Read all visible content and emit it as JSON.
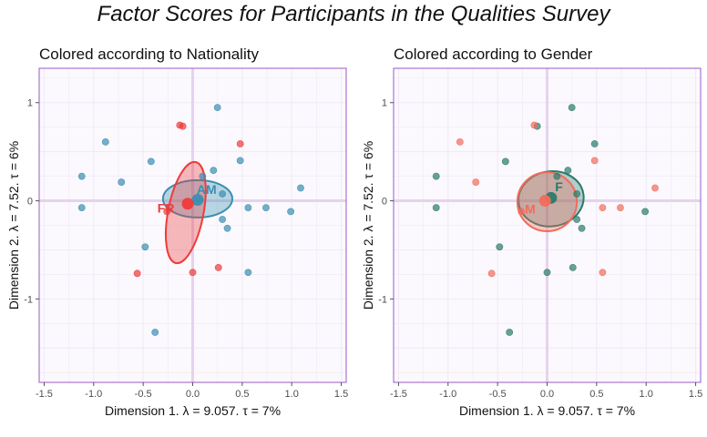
{
  "title": "Factor Scores for Participants in the Qualities Survey",
  "chart_data": [
    {
      "type": "scatter",
      "title": "Colored according to Nationality",
      "xlabel": "Dimension 1.   λ = 9.057.  τ = 7%",
      "ylabel": "Dimension 2.   λ = 7.52.  τ = 6%",
      "xlim": [
        -1.55,
        1.55
      ],
      "ylim": [
        -1.85,
        1.35
      ],
      "xticks": [
        -1.5,
        -1,
        -0.5,
        0,
        0.5,
        1,
        1.5
      ],
      "xtick_labels": [
        "-1.5",
        "-1.0",
        "-0.5",
        "0.0",
        "0.5",
        "1.0",
        "1.5"
      ],
      "yticks": [
        1,
        0,
        -1
      ],
      "ytick_labels": [
        "1",
        "0",
        "-1"
      ],
      "series": [
        {
          "name": "AM",
          "color": "#3a8fb0",
          "points": [
            [
              0.25,
              0.95
            ],
            [
              -0.88,
              0.6
            ],
            [
              -1.12,
              0.25
            ],
            [
              -0.72,
              0.19
            ],
            [
              -1.12,
              -0.07
            ],
            [
              -0.42,
              0.4
            ],
            [
              0.21,
              0.31
            ],
            [
              0.1,
              0.25
            ],
            [
              0.48,
              0.41
            ],
            [
              0.3,
              0.07
            ],
            [
              0.3,
              -0.19
            ],
            [
              0.56,
              -0.07
            ],
            [
              0.74,
              -0.07
            ],
            [
              0.99,
              -0.11
            ],
            [
              1.09,
              0.13
            ],
            [
              0.35,
              -0.28
            ],
            [
              -0.48,
              -0.47
            ],
            [
              0.56,
              -0.73
            ],
            [
              -0.38,
              -1.34
            ]
          ],
          "mean": [
            0.05,
            0.01
          ],
          "ellipse": {
            "cx": 0.05,
            "cy": 0.02,
            "rx": 0.35,
            "ry": 0.19,
            "angle": 0
          },
          "label": "AM",
          "label_pos": [
            0.14,
            0.07
          ]
        },
        {
          "name": "FR",
          "color": "#ee3b3b",
          "points": [
            [
              -0.13,
              0.77
            ],
            [
              -0.1,
              0.76
            ],
            [
              0.48,
              0.58
            ],
            [
              -0.26,
              -0.11
            ],
            [
              0.0,
              -0.73
            ],
            [
              -0.56,
              -0.74
            ],
            [
              0.26,
              -0.68
            ]
          ],
          "mean": [
            -0.05,
            -0.03
          ],
          "ellipse": {
            "cx": -0.07,
            "cy": -0.12,
            "rx": 0.52,
            "ry": 0.18,
            "angle": -79
          },
          "label": "FR",
          "label_pos": [
            -0.27,
            -0.12
          ]
        }
      ]
    },
    {
      "type": "scatter",
      "title": "Colored according to Gender",
      "xlabel": "Dimension 1.   λ = 9.057.  τ = 7%",
      "ylabel": "Dimension 2.   λ = 7.52.  τ = 6%",
      "xlim": [
        -1.55,
        1.55
      ],
      "ylim": [
        -1.85,
        1.35
      ],
      "xticks": [
        -1.5,
        -1,
        -0.5,
        0,
        0.5,
        1,
        1.5
      ],
      "xtick_labels": [
        "-1.5",
        "-1.0",
        "-0.5",
        "0.0",
        "0.5",
        "1.0",
        "1.5"
      ],
      "yticks": [
        1,
        0,
        -1
      ],
      "ytick_labels": [
        "1",
        "0",
        "-1"
      ],
      "series": [
        {
          "name": "F",
          "color": "#2a7a6a",
          "points": [
            [
              0.25,
              0.95
            ],
            [
              -0.1,
              0.76
            ],
            [
              0.48,
              0.58
            ],
            [
              -1.12,
              0.25
            ],
            [
              -0.42,
              0.4
            ],
            [
              0.21,
              0.31
            ],
            [
              0.1,
              0.25
            ],
            [
              -1.12,
              -0.07
            ],
            [
              0.3,
              0.07
            ],
            [
              0.3,
              -0.19
            ],
            [
              0.35,
              -0.28
            ],
            [
              0.99,
              -0.11
            ],
            [
              -0.48,
              -0.47
            ],
            [
              0.0,
              -0.73
            ],
            [
              0.26,
              -0.68
            ],
            [
              -0.38,
              -1.34
            ]
          ],
          "mean": [
            0.04,
            0.03
          ],
          "ellipse": {
            "cx": 0.04,
            "cy": 0.02,
            "rx": 0.33,
            "ry": 0.28,
            "angle": -8
          },
          "label": "F",
          "label_pos": [
            0.12,
            0.1
          ]
        },
        {
          "name": "M",
          "color": "#f26c5c",
          "points": [
            [
              -0.13,
              0.77
            ],
            [
              -0.88,
              0.6
            ],
            [
              0.48,
              0.41
            ],
            [
              -0.72,
              0.19
            ],
            [
              1.09,
              0.13
            ],
            [
              0.74,
              -0.07
            ],
            [
              0.56,
              -0.07
            ],
            [
              -0.26,
              -0.11
            ],
            [
              -0.56,
              -0.74
            ],
            [
              0.56,
              -0.73
            ]
          ],
          "mean": [
            -0.02,
            0.0
          ],
          "ellipse": {
            "cx": 0.0,
            "cy": -0.01,
            "rx": 0.3,
            "ry": 0.3,
            "angle": 0
          },
          "label": "M",
          "label_pos": [
            -0.17,
            -0.13
          ]
        }
      ]
    }
  ]
}
